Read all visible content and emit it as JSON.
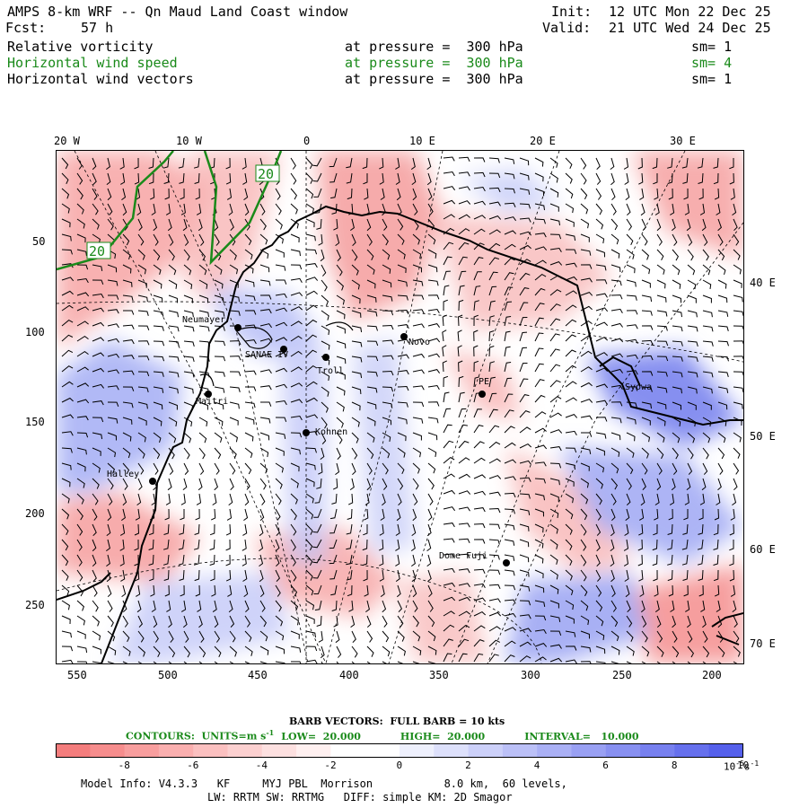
{
  "header": {
    "title": "AMPS 8-km WRF -- Qn Maud Land Coast window",
    "init_label": "Init:",
    "init_value": "12 UTC Mon 22 Dec 25",
    "fcst_label": "Fcst:",
    "fcst_value": "57 h",
    "valid_label": "Valid:",
    "valid_value": "21 UTC Wed 24 Dec 25"
  },
  "fields": [
    {
      "name": "Relative vorticity",
      "level": "at pressure =  300 hPa",
      "sm": "sm= 1",
      "color": "#000000"
    },
    {
      "name": "Horizontal wind speed",
      "level": "at pressure =  300 hPa",
      "sm": "sm= 4",
      "color": "#1a8a1a"
    },
    {
      "name": "Horizontal wind vectors",
      "level": "at pressure =  300 hPa",
      "sm": "sm= 1",
      "color": "#000000"
    }
  ],
  "top_longitudes": [
    "20 W",
    "10 W",
    "0",
    "10 E",
    "20 E",
    "30 E"
  ],
  "right_longitudes": [
    "40 E",
    "50 E",
    "60 E",
    "70 E"
  ],
  "left_ticks": [
    "50",
    "100",
    "150",
    "200",
    "250"
  ],
  "bottom_ticks": [
    "550",
    "500",
    "450",
    "400",
    "350",
    "300",
    "250",
    "200"
  ],
  "stations": [
    "Neumayer",
    "SANAE IV",
    "Troll",
    "Novo",
    "Kohnen",
    "Halley",
    "Dome Fuji",
    "PE",
    "Syowa",
    "Maitri"
  ],
  "contour_labels": [
    "20",
    "20"
  ],
  "barb_text": "BARB VECTORS:  FULL BARB = 10 kts",
  "contours": {
    "label": "CONTOURS:  UNITS=m s",
    "units_sup": "-1",
    "low": "LOW=  20.000",
    "high": "HIGH=  20.000",
    "interval": "INTERVAL=   10.000"
  },
  "colorbar": {
    "labels": [
      "-8",
      "-6",
      "-4",
      "-2",
      "0",
      "2",
      "4",
      "6",
      "8",
      "10"
    ],
    "units": "10",
    "units_exp": "-5",
    "units_tail": "s",
    "units_tail_exp": "-1",
    "colors": [
      "#f47d7d",
      "#f68d8d",
      "#f89e9e",
      "#faafaf",
      "#fbc0c0",
      "#fcd0d0",
      "#fde0e0",
      "#fff0f0",
      "#ffffff",
      "#ffffff",
      "#eef0fd",
      "#dde0fb",
      "#ccd0f9",
      "#bbc0f7",
      "#aab0f5",
      "#99a0f3",
      "#8890f1",
      "#7780ef",
      "#6670ed",
      "#5560eb"
    ]
  },
  "footer": {
    "line1": "Model Info: V4.3.3   KF     MYJ PBL  Morrison           8.0 km,  60 levels,",
    "line2": "LW: RRTM SW: RRTMG   DIFF: simple KM: 2D Smagor"
  }
}
